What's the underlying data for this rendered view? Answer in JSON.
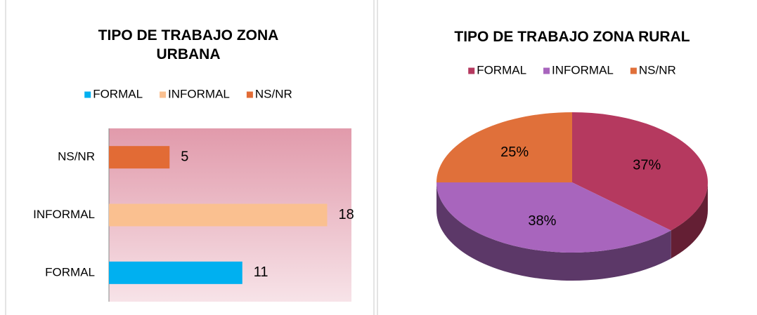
{
  "chart_data": [
    {
      "type": "barh",
      "title": "TIPO DE TRABAJO ZONA URBANA",
      "categories": [
        "FORMAL",
        "INFORMAL",
        "NS/NR"
      ],
      "values": [
        11,
        18,
        5
      ],
      "colors": [
        "#00b0f0",
        "#fac090",
        "#e26b35"
      ],
      "xlim": [
        0,
        20
      ]
    },
    {
      "type": "pie3d",
      "title": "TIPO DE TRABAJO ZONA RURAL",
      "categories": [
        "FORMAL",
        "INFORMAL",
        "NS/NR"
      ],
      "values": [
        37,
        38,
        25
      ],
      "value_labels": [
        "37%",
        "38%",
        "25%"
      ],
      "colors": [
        "#b5395f",
        "#a865bd",
        "#e0703a"
      ]
    }
  ]
}
